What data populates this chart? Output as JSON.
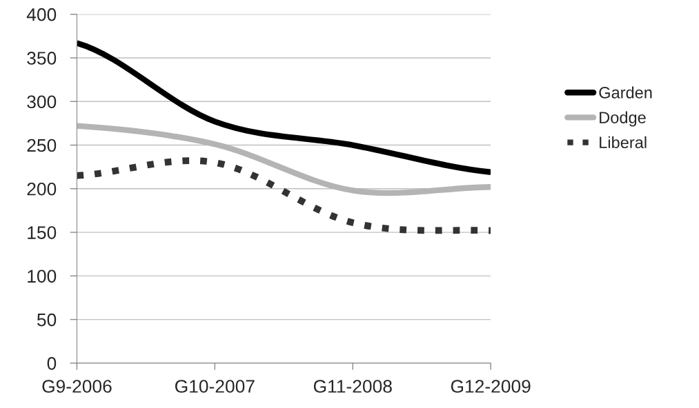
{
  "chart_data": {
    "type": "line",
    "categories": [
      "G9-2006",
      "G10-2007",
      "G11-2008",
      "G12-2009"
    ],
    "series": [
      {
        "name": "Garden",
        "color": "#000000",
        "values": [
          367,
          277,
          250,
          219
        ],
        "line_style": "solid"
      },
      {
        "name": "Dodge",
        "color": "#b4b4b4",
        "values": [
          272,
          251,
          198,
          202
        ],
        "line_style": "solid"
      },
      {
        "name": "Liberal",
        "color": "#333333",
        "values": [
          215,
          230,
          161,
          152
        ],
        "line_style": "dotted"
      }
    ],
    "ylim": [
      0,
      400
    ],
    "yticks": [
      0,
      50,
      100,
      150,
      200,
      250,
      300,
      350,
      400
    ],
    "grid": "y",
    "legend": "right",
    "marker": "none"
  }
}
